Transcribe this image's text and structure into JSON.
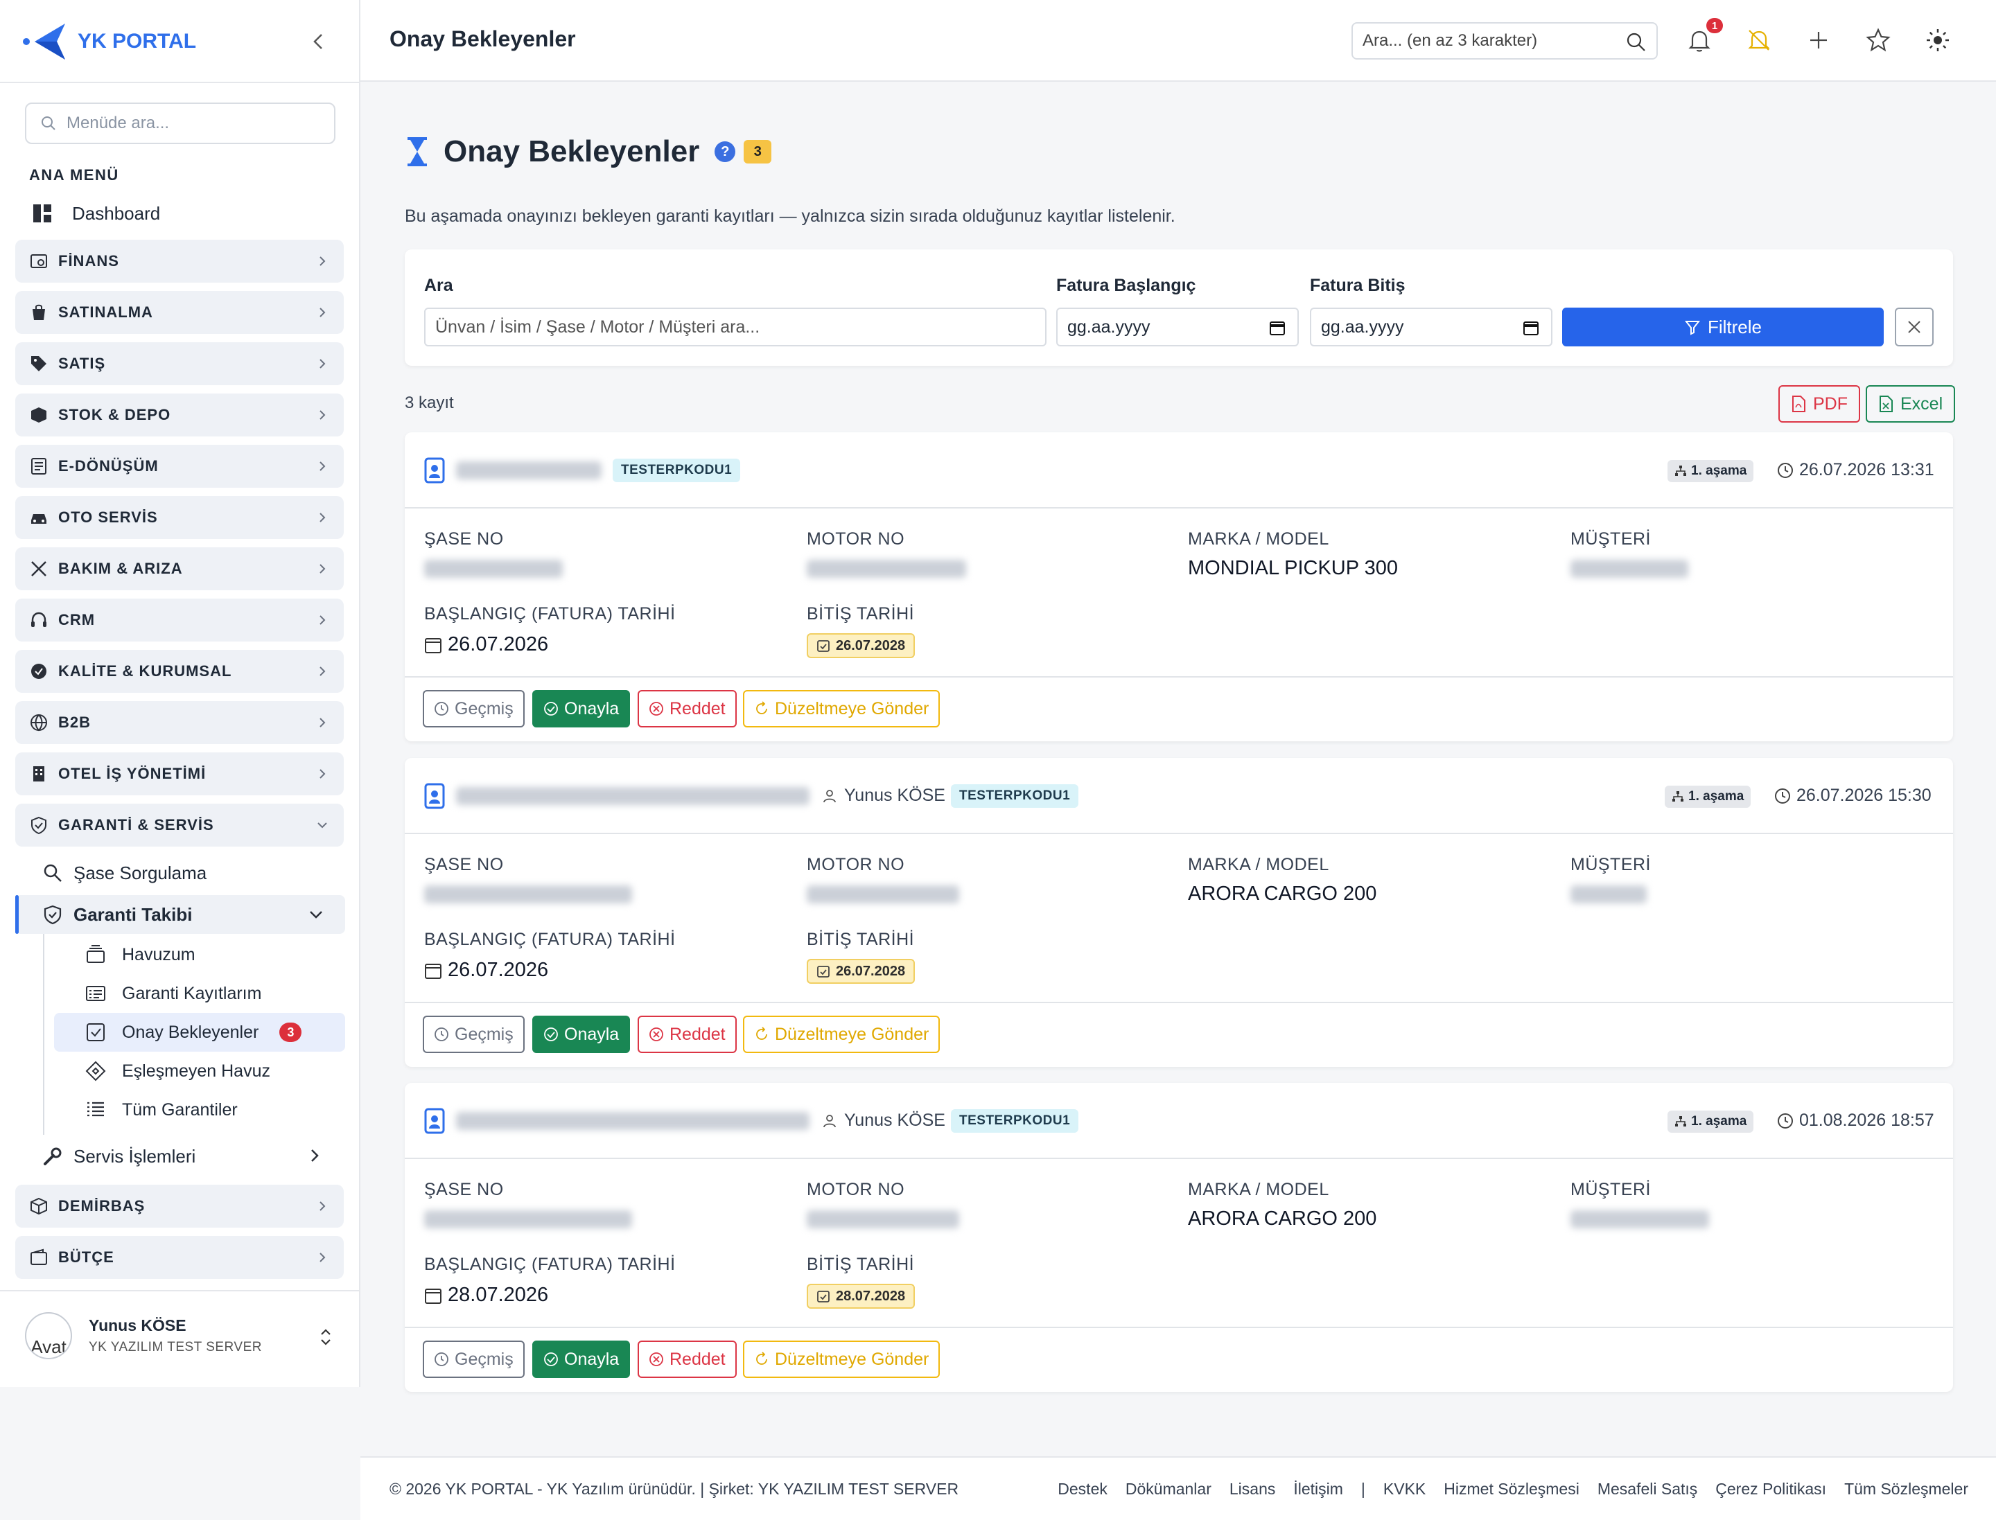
{
  "app": {
    "name": "YK PORTAL"
  },
  "header": {
    "title": "Onay Bekleyenler",
    "search_placeholder": "Ara... (en az 3 karakter)",
    "notification_count": "1"
  },
  "sidebar": {
    "search_placeholder": "Menüde ara...",
    "section_label": "ANA MENÜ",
    "dashboard": "Dashboard",
    "categories": [
      {
        "label": "FİNANS",
        "icon": "finance-icon"
      },
      {
        "label": "SATINALMA",
        "icon": "shopping-bag-icon"
      },
      {
        "label": "SATIŞ",
        "icon": "tag-icon"
      },
      {
        "label": "STOK & DEPO",
        "icon": "box-icon"
      },
      {
        "label": "E-DÖNÜŞÜM",
        "icon": "document-icon"
      },
      {
        "label": "OTO SERVİS",
        "icon": "car-icon"
      },
      {
        "label": "BAKIM & ARIZA",
        "icon": "tools-icon"
      },
      {
        "label": "CRM",
        "icon": "headset-icon"
      },
      {
        "label": "KALİTE & KURUMSAL",
        "icon": "award-icon"
      },
      {
        "label": "B2B",
        "icon": "globe-icon"
      },
      {
        "label": "OTEL İŞ YÖNETİMİ",
        "icon": "building-icon"
      },
      {
        "label": "GARANTİ & SERVİS",
        "icon": "shield-icon"
      }
    ],
    "garanti_children": {
      "sase": "Şase Sorgulama",
      "takip": "Garanti Takibi",
      "takip_children": [
        "Havuzum",
        "Garanti Kayıtlarım",
        "Onay Bekleyenler",
        "Eşleşmeyen Havuz",
        "Tüm Garantiler"
      ],
      "onay_badge": "3",
      "servis": "Servis İşlemleri"
    },
    "bottom_categories": [
      {
        "label": "DEMİRBAŞ",
        "icon": "cube-icon"
      },
      {
        "label": "BÜTÇE",
        "icon": "wallet-icon"
      }
    ],
    "user": {
      "name": "Yunus KÖSE",
      "company": "YK YAZILIM TEST SERVER",
      "avatar_alt": "Avat"
    }
  },
  "page": {
    "title": "Onay Bekleyenler",
    "count_badge": "3",
    "description": "Bu aşamada onayınızı bekleyen garanti kayıtları — yalnızca sizin sırada olduğunuz kayıtlar listelenir.",
    "filter": {
      "search_label": "Ara",
      "search_placeholder": "Ünvan / İsim / Şase / Motor / Müşteri ara...",
      "start_label": "Fatura Başlangıç",
      "end_label": "Fatura Bitiş",
      "date_placeholder": "gg.aa.yyyy",
      "button": "Filtrele"
    },
    "record_count": "3 kayıt",
    "export": {
      "pdf": "PDF",
      "excel": "Excel"
    },
    "labels": {
      "sase": "ŞASE NO",
      "motor": "MOTOR NO",
      "marka": "MARKA / MODEL",
      "musteri": "MÜŞTERİ",
      "baslangic": "BAŞLANGIÇ (FATURA) TARİHİ",
      "bitis": "BİTİŞ TARİHİ"
    },
    "actions": {
      "history": "Geçmiş",
      "approve": "Onayla",
      "reject": "Reddet",
      "revise": "Düzeltmeye Gönder"
    },
    "records": [
      {
        "user": "",
        "code": "TESTERPKODU1",
        "stage": "1. aşama",
        "datetime": "26.07.2026 13:31",
        "model": "MONDIAL PICKUP 300",
        "start": "26.07.2026",
        "end": "26.07.2028"
      },
      {
        "user": "Yunus KÖSE",
        "code": "TESTERPKODU1",
        "stage": "1. aşama",
        "datetime": "26.07.2026 15:30",
        "model": "ARORA CARGO 200",
        "start": "26.07.2026",
        "end": "26.07.2028"
      },
      {
        "user": "Yunus KÖSE",
        "code": "TESTERPKODU1",
        "stage": "1. aşama",
        "datetime": "01.08.2026 18:57",
        "model": "ARORA CARGO 200",
        "start": "28.07.2026",
        "end": "28.07.2028"
      }
    ]
  },
  "footer": {
    "copyright": "© 2026 YK PORTAL - YK Yazılım ürünüdür. | Şirket: YK YAZILIM TEST SERVER",
    "links": [
      "Destek",
      "Dökümanlar",
      "Lisans",
      "İletişim",
      "|",
      "KVKK",
      "Hizmet Sözleşmesi",
      "Mesafeli Satış",
      "Çerez Politikası",
      "Tüm Sözleşmeler"
    ]
  }
}
